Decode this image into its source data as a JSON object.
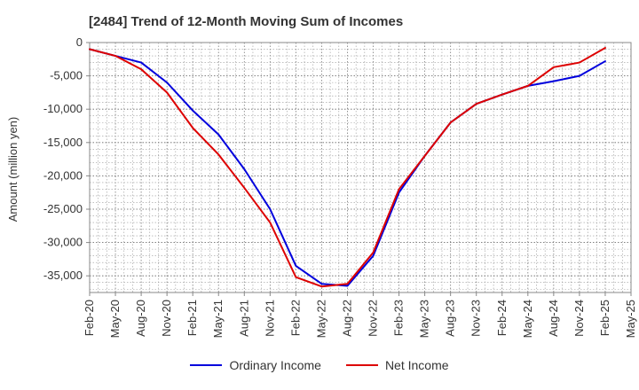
{
  "chart_data": {
    "type": "line",
    "title": "[2484]  Trend of 12-Month Moving Sum of Incomes",
    "ylabel": "Amount (million yen)",
    "xlabel": "",
    "ylim": [
      -37500,
      0
    ],
    "yticks": [
      0,
      -5000,
      -10000,
      -15000,
      -20000,
      -25000,
      -30000,
      -35000
    ],
    "ytick_labels": [
      "0",
      "-5,000",
      "-10,000",
      "-15,000",
      "-20,000",
      "-25,000",
      "-30,000",
      "-35,000"
    ],
    "categories": [
      "Feb-20",
      "May-20",
      "Aug-20",
      "Nov-20",
      "Feb-21",
      "May-21",
      "Aug-21",
      "Nov-21",
      "Feb-22",
      "May-22",
      "Aug-22",
      "Nov-22",
      "Feb-23",
      "May-23",
      "Aug-23",
      "Nov-23",
      "Feb-24",
      "May-24",
      "Aug-24",
      "Nov-24",
      "Feb-25",
      "May-25"
    ],
    "grid": true,
    "legend_position": "bottom",
    "series": [
      {
        "name": "Ordinary Income",
        "color": "#0000dd",
        "values": [
          -1000,
          -2000,
          -3000,
          -6000,
          -10200,
          -13800,
          -19000,
          -25000,
          -33500,
          -36200,
          -36500,
          -32000,
          -22500,
          -17000,
          -12000,
          -9200,
          -7800,
          -6500,
          -5800,
          -5000,
          -2800,
          null
        ]
      },
      {
        "name": "Net Income",
        "color": "#dd0000",
        "values": [
          -1000,
          -2000,
          -4000,
          -7500,
          -12800,
          -16800,
          -21800,
          -27000,
          -35200,
          -36600,
          -36200,
          -31500,
          -22000,
          -17000,
          -12000,
          -9200,
          -7800,
          -6500,
          -3700,
          -3000,
          -800,
          null
        ]
      }
    ]
  }
}
